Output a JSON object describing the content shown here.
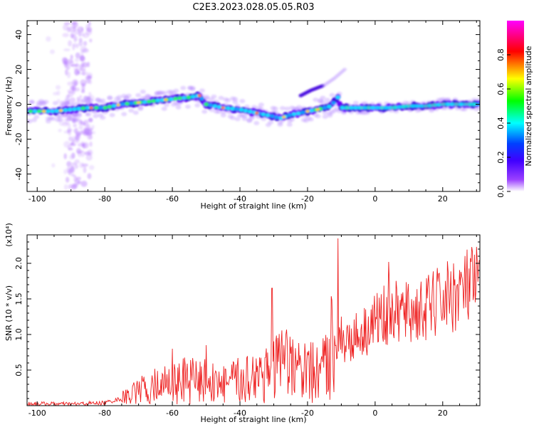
{
  "title": "C2E3.2023.028.05.05.R03",
  "chart_data": [
    {
      "type": "heatmap",
      "title": "",
      "xlabel": "Height of straight line (km)",
      "ylabel": "Frequency (Hz)",
      "xlim": [
        -103,
        31
      ],
      "ylim": [
        -50,
        48
      ],
      "xticks": [
        -100,
        -80,
        -60,
        -40,
        -20,
        0,
        20
      ],
      "yticks": [
        -40,
        -20,
        0,
        20,
        40
      ],
      "colorbar": {
        "label": "Normalized spectral amplitude",
        "range": [
          0.0,
          1.0
        ],
        "ticks": [
          0.0,
          0.2,
          0.4,
          0.6,
          0.8
        ],
        "colors": [
          "#ffffff",
          "#8000ff",
          "#0000ff",
          "#00ffff",
          "#00ff00",
          "#ffff00",
          "#ff0000",
          "#ff00ff"
        ]
      },
      "ridge": {
        "x": [
          -103,
          -95,
          -90,
          -85,
          -80,
          -75,
          -70,
          -65,
          -60,
          -55,
          -52,
          -50,
          -45,
          -40,
          -35,
          -30,
          -28,
          -25,
          -22,
          -20,
          -17,
          -15,
          -13,
          -11,
          -10,
          -5,
          0,
          5,
          10,
          15,
          20,
          25,
          30
        ],
        "y": [
          -4,
          -4,
          -3,
          -2,
          -2,
          0,
          1,
          2,
          3,
          4,
          5,
          0,
          -2,
          -3,
          -5,
          -7,
          -8,
          -6,
          -5,
          -4,
          -3,
          -2,
          -1,
          4,
          -2,
          -2,
          -2,
          -2,
          -1,
          -1,
          0,
          0,
          0
        ]
      },
      "branch": {
        "x": [
          -22,
          -19,
          -15,
          -12,
          -9
        ],
        "y": [
          5,
          8,
          11,
          15,
          20
        ]
      }
    },
    {
      "type": "line",
      "title": "",
      "xlabel": "Height of straight line (km)",
      "ylabel": "SNR (10 * v/v)",
      "scale_label": "(x10⁴)",
      "xlim": [
        -103,
        31
      ],
      "ylim": [
        0,
        2.4
      ],
      "xticks": [
        -100,
        -80,
        -60,
        -40,
        -20,
        0,
        20
      ],
      "yticks": [
        0.5,
        1.0,
        1.5,
        2.0
      ],
      "color": "#ee2020",
      "x": [
        -103,
        -90,
        -80,
        -75,
        -70,
        -65,
        -60,
        -55,
        -50,
        -45,
        -40,
        -35,
        -30,
        -25,
        -20,
        -15,
        -12,
        -10.5,
        -9,
        -5,
        -2,
        0,
        4,
        10,
        15,
        20,
        25,
        30
      ],
      "y": [
        0.03,
        0.02,
        0.04,
        0.1,
        0.2,
        0.28,
        0.32,
        0.36,
        0.35,
        0.3,
        0.35,
        0.45,
        0.55,
        0.55,
        0.45,
        0.5,
        1.0,
        1.0,
        0.9,
        1.0,
        1.1,
        1.2,
        1.3,
        1.3,
        1.35,
        1.5,
        1.6,
        1.7
      ],
      "peaks": {
        "x": [
          -60,
          -50,
          -30.5,
          -11,
          4,
          17
        ],
        "y": [
          0.8,
          0.85,
          1.65,
          2.35,
          2.02,
          1.75
        ]
      }
    }
  ]
}
